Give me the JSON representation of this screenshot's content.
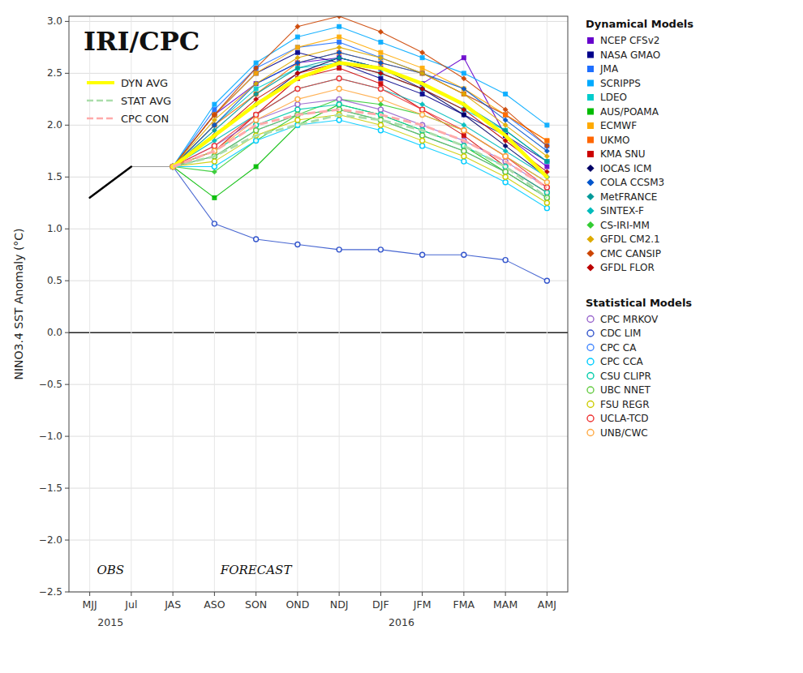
{
  "chart_data": {
    "type": "line",
    "title": "IRI/CPC",
    "ylabel": "NINO3.4 SST Anomaly (°C)",
    "categories": [
      "MJJ",
      "Jul",
      "JAS",
      "ASO",
      "SON",
      "OND",
      "NDJ",
      "DJF",
      "JFM",
      "FMA",
      "MAM",
      "AMJ"
    ],
    "ylim": [
      -2.5,
      3.05
    ],
    "yticks": [
      {
        "value": -2.5,
        "label": "−2.5"
      },
      {
        "value": -2.0,
        "label": "−2.0"
      },
      {
        "value": -1.5,
        "label": "−1.5"
      },
      {
        "value": -1.0,
        "label": "−1.0"
      },
      {
        "value": -0.5,
        "label": "−0.5"
      },
      {
        "value": 0.0,
        "label": "0.0"
      },
      0.5,
      {
        "value": 1.0,
        "label": "1.0"
      },
      1.5,
      {
        "value": 2.0,
        "label": "2.0"
      },
      2.5,
      {
        "value": 3.0,
        "label": "3.0"
      }
    ],
    "grid": true,
    "annotations": [
      "OBS",
      "FORECAST"
    ],
    "year_labels": [
      "2015",
      "2016"
    ],
    "series": [
      {
        "name": "NCEP CFSv2",
        "group": "Dynamical Models",
        "color": "#6600cc",
        "marker": "square",
        "line_style": "solid",
        "values": [
          null,
          null,
          1.6,
          2.1,
          2.4,
          2.6,
          2.65,
          2.55,
          2.4,
          2.65,
          1.9,
          1.6
        ]
      },
      {
        "name": "NASA GMAO",
        "group": "Dynamical Models",
        "color": "#00008b",
        "marker": "square",
        "line_style": "solid",
        "values": [
          null,
          null,
          1.6,
          2.1,
          2.5,
          2.7,
          2.6,
          2.45,
          2.3,
          2.1,
          1.9,
          1.65
        ]
      },
      {
        "name": "JMA",
        "group": "Dynamical Models",
        "color": "#1e6fff",
        "marker": "square",
        "line_style": "solid",
        "values": [
          null,
          null,
          1.6,
          2.15,
          2.55,
          2.75,
          2.8,
          2.65,
          2.5,
          2.3,
          2.1,
          1.8
        ]
      },
      {
        "name": "SCRIPPS",
        "group": "Dynamical Models",
        "color": "#00aaff",
        "marker": "square",
        "line_style": "solid",
        "values": [
          null,
          null,
          1.6,
          2.2,
          2.6,
          2.85,
          2.95,
          2.8,
          2.65,
          2.5,
          2.3,
          2.0
        ]
      },
      {
        "name": "LDEO",
        "group": "Dynamical Models",
        "color": "#00cccc",
        "marker": "square",
        "line_style": "solid",
        "values": [
          null,
          null,
          1.6,
          2.0,
          2.35,
          2.55,
          2.6,
          2.5,
          2.35,
          2.15,
          1.95,
          1.65
        ]
      },
      {
        "name": "AUS/POAMA",
        "group": "Dynamical Models",
        "color": "#00bb00",
        "marker": "square",
        "line_style": "solid",
        "values": [
          null,
          null,
          1.6,
          1.3,
          1.6,
          2.0,
          2.2,
          2.1,
          1.95,
          1.8,
          1.55,
          1.3
        ]
      },
      {
        "name": "ECMWF",
        "group": "Dynamical Models",
        "color": "#ffaa00",
        "marker": "square",
        "line_style": "solid",
        "values": [
          null,
          null,
          1.6,
          2.1,
          2.5,
          2.75,
          2.85,
          2.7,
          2.55,
          2.35,
          2.1,
          1.85
        ]
      },
      {
        "name": "UKMO",
        "group": "Dynamical Models",
        "color": "#ff6600",
        "marker": "square",
        "line_style": "solid",
        "values": [
          null,
          null,
          1.6,
          2.0,
          2.3,
          2.6,
          2.7,
          2.6,
          2.5,
          2.3,
          2.1,
          1.85
        ]
      },
      {
        "name": "KMA SNU",
        "group": "Dynamical Models",
        "color": "#cc0000",
        "marker": "square",
        "line_style": "solid",
        "values": [
          null,
          null,
          1.6,
          1.75,
          2.1,
          2.45,
          2.55,
          2.4,
          2.15,
          1.9,
          1.6,
          1.35
        ]
      },
      {
        "name": "IOCAS ICM",
        "group": "Dynamical Models",
        "color": "#000066",
        "marker": "diamond",
        "line_style": "solid",
        "values": [
          null,
          null,
          1.6,
          1.9,
          2.2,
          2.5,
          2.65,
          2.55,
          2.35,
          2.1,
          1.8,
          1.5
        ]
      },
      {
        "name": "COLA CCSM3",
        "group": "Dynamical Models",
        "color": "#0055cc",
        "marker": "diamond",
        "line_style": "solid",
        "values": [
          null,
          null,
          1.6,
          2.0,
          2.4,
          2.6,
          2.7,
          2.6,
          2.5,
          2.35,
          2.05,
          1.75
        ]
      },
      {
        "name": "MetFRANCE",
        "group": "Dynamical Models",
        "color": "#009999",
        "marker": "diamond",
        "line_style": "solid",
        "values": [
          null,
          null,
          1.6,
          1.95,
          2.3,
          2.55,
          2.65,
          2.55,
          2.4,
          2.2,
          1.95,
          1.65
        ]
      },
      {
        "name": "SINTEX-F",
        "group": "Dynamical Models",
        "color": "#00bbbb",
        "marker": "diamond",
        "line_style": "solid",
        "values": [
          null,
          null,
          1.6,
          1.85,
          2.1,
          2.35,
          2.45,
          2.35,
          2.2,
          2.0,
          1.75,
          1.5
        ]
      },
      {
        "name": "CS-IRI-MM",
        "group": "Dynamical Models",
        "color": "#33cc33",
        "marker": "diamond",
        "line_style": "solid",
        "values": [
          null,
          null,
          1.6,
          1.55,
          1.85,
          2.1,
          2.25,
          2.2,
          2.1,
          1.95,
          1.7,
          1.45
        ]
      },
      {
        "name": "GFDL CM2.1",
        "group": "Dynamical Models",
        "color": "#ddaa00",
        "marker": "diamond",
        "line_style": "solid",
        "values": [
          null,
          null,
          1.6,
          2.05,
          2.4,
          2.65,
          2.75,
          2.65,
          2.5,
          2.3,
          2.0,
          1.7
        ]
      },
      {
        "name": "CMC CANSIP",
        "group": "Dynamical Models",
        "color": "#cc4400",
        "marker": "diamond",
        "line_style": "solid",
        "values": [
          null,
          null,
          1.6,
          2.1,
          2.55,
          2.95,
          3.05,
          2.9,
          2.7,
          2.45,
          2.15,
          1.8
        ]
      },
      {
        "name": "GFDL FLOR",
        "group": "Dynamical Models",
        "color": "#bb0000",
        "marker": "diamond",
        "line_style": "solid",
        "values": [
          null,
          null,
          1.6,
          1.9,
          2.25,
          2.5,
          2.6,
          2.5,
          2.35,
          2.15,
          1.85,
          1.55
        ]
      },
      {
        "name": "CPC MRKOV",
        "group": "Statistical Models",
        "color": "#9966cc",
        "marker": "open-circle",
        "line_style": "solid",
        "values": [
          null,
          null,
          1.6,
          1.8,
          2.05,
          2.2,
          2.25,
          2.15,
          2.0,
          1.85,
          1.65,
          1.4
        ]
      },
      {
        "name": "CDC LIM",
        "group": "Statistical Models",
        "color": "#3355cc",
        "marker": "open-circle",
        "line_style": "solid",
        "values": [
          null,
          null,
          1.6,
          1.05,
          0.9,
          0.85,
          0.8,
          0.8,
          0.75,
          0.75,
          0.7,
          0.5
        ]
      },
      {
        "name": "CPC CA",
        "group": "Statistical Models",
        "color": "#4488ff",
        "marker": "open-circle",
        "line_style": "solid",
        "values": [
          null,
          null,
          1.6,
          1.7,
          1.95,
          2.1,
          2.15,
          2.05,
          1.9,
          1.75,
          1.55,
          1.3
        ]
      },
      {
        "name": "CPC CCA",
        "group": "Statistical Models",
        "color": "#00ccff",
        "marker": "open-circle",
        "line_style": "solid",
        "values": [
          null,
          null,
          1.6,
          1.6,
          1.85,
          2.0,
          2.05,
          1.95,
          1.8,
          1.65,
          1.45,
          1.2
        ]
      },
      {
        "name": "CSU CLIPR",
        "group": "Statistical Models",
        "color": "#00ccaa",
        "marker": "open-circle",
        "line_style": "solid",
        "values": [
          null,
          null,
          1.6,
          1.75,
          2.0,
          2.15,
          2.2,
          2.1,
          1.95,
          1.8,
          1.6,
          1.35
        ]
      },
      {
        "name": "UBC NNET",
        "group": "Statistical Models",
        "color": "#66cc44",
        "marker": "open-circle",
        "line_style": "solid",
        "values": [
          null,
          null,
          1.6,
          1.7,
          1.95,
          2.1,
          2.15,
          2.05,
          1.9,
          1.75,
          1.55,
          1.3
        ]
      },
      {
        "name": "FSU REGR",
        "group": "Statistical Models",
        "color": "#cccc00",
        "marker": "open-circle",
        "line_style": "solid",
        "values": [
          null,
          null,
          1.6,
          1.65,
          1.9,
          2.05,
          2.1,
          2.0,
          1.85,
          1.7,
          1.5,
          1.25
        ]
      },
      {
        "name": "UCLA-TCD",
        "group": "Statistical Models",
        "color": "#ee3333",
        "marker": "open-circle",
        "line_style": "solid",
        "values": [
          null,
          null,
          1.6,
          1.8,
          2.1,
          2.35,
          2.45,
          2.35,
          2.15,
          1.95,
          1.7,
          1.4
        ]
      },
      {
        "name": "UNB/CWC",
        "group": "Statistical Models",
        "color": "#ffaa44",
        "marker": "open-circle",
        "line_style": "solid",
        "values": [
          null,
          null,
          1.6,
          1.75,
          2.05,
          2.25,
          2.35,
          2.25,
          2.1,
          1.95,
          1.7,
          1.45
        ]
      },
      {
        "name": "DYN AVG",
        "color": "#ffff00",
        "line_style": "solid",
        "values": [
          null,
          null,
          1.6,
          1.9,
          2.2,
          2.45,
          2.6,
          2.55,
          2.4,
          2.2,
          1.9,
          1.5
        ]
      },
      {
        "name": "STAT AVG",
        "color": "#aaddaa",
        "line_style": "dashed",
        "values": [
          null,
          null,
          1.6,
          1.7,
          1.9,
          2.0,
          2.1,
          2.05,
          1.95,
          1.8,
          1.6,
          1.3
        ]
      },
      {
        "name": "CPC CON",
        "color": "#ffaaaa",
        "line_style": "dashed",
        "values": [
          null,
          null,
          1.6,
          1.75,
          2.0,
          2.1,
          2.15,
          2.1,
          2.0,
          1.85,
          1.65,
          1.4
        ]
      },
      {
        "color": "#000000",
        "line_style": "solid",
        "values": [
          1.3,
          1.6,
          null,
          null,
          null,
          null,
          null,
          null,
          null,
          null,
          null,
          null
        ]
      }
    ]
  }
}
